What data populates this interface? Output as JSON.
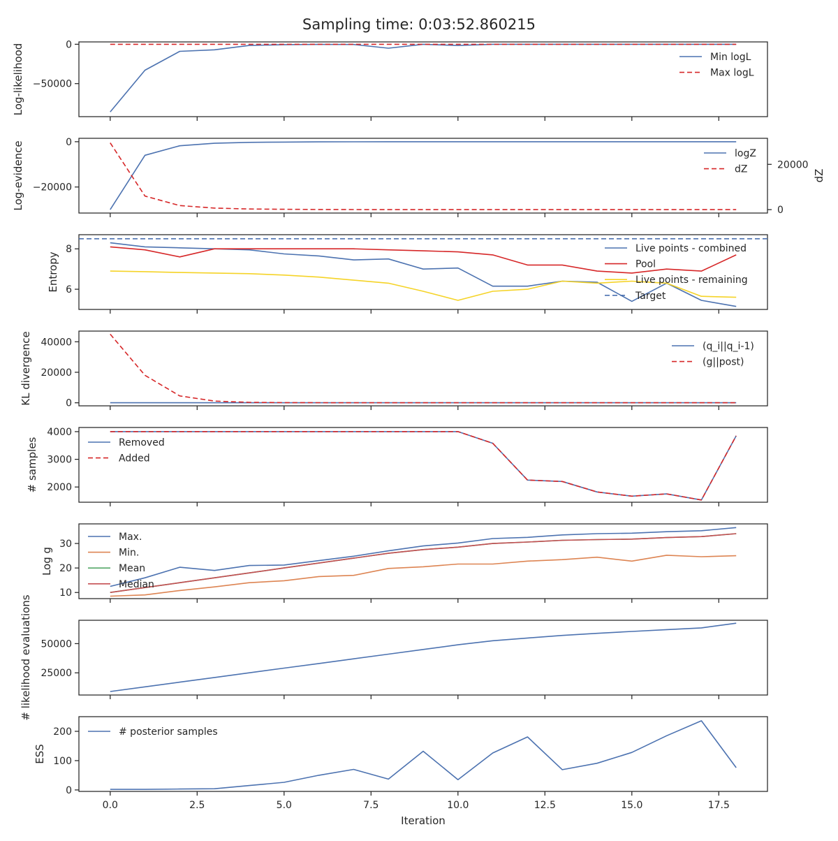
{
  "title": "Sampling time: 0:03:52.860215",
  "colors": {
    "blue": "#4c72b0",
    "red": "#d62728",
    "orange": "#dd8452",
    "green": "#55a868",
    "median": "#c44e52",
    "yellow": "#f5d327",
    "axis": "#262626"
  },
  "chart_data": [
    {
      "type": "line",
      "ylabel": "Log-likelihood",
      "ylim": [
        -92000,
        3000
      ],
      "yticks": [
        0,
        -50000
      ],
      "ytick_labels": [
        "0",
        "−50000"
      ],
      "legend": "upper-right",
      "x": [
        0,
        1,
        2,
        3,
        4,
        5,
        6,
        7,
        8,
        9,
        10,
        11,
        12,
        13,
        14,
        15,
        16,
        17,
        18
      ],
      "series": [
        {
          "name": "Min logL",
          "color": "#4c72b0",
          "dash": "solid",
          "values": [
            -86000,
            -33000,
            -9000,
            -7000,
            -1500,
            -500,
            -200,
            -300,
            -5000,
            0,
            -1500,
            0,
            0,
            0,
            0,
            0,
            0,
            0,
            0
          ]
        },
        {
          "name": "Max logL",
          "color": "#d62728",
          "dash": "dashed",
          "values": [
            0,
            0,
            0,
            0,
            0,
            0,
            0,
            0,
            0,
            0,
            0,
            0,
            0,
            0,
            0,
            0,
            0,
            0,
            0
          ]
        }
      ]
    },
    {
      "type": "line",
      "ylabel": "Log-evidence",
      "ylim": [
        -31500,
        1500
      ],
      "yticks": [
        0,
        -20000
      ],
      "ytick_labels": [
        "0",
        "−20000"
      ],
      "legend": "upper-right",
      "x": [
        0,
        1,
        2,
        3,
        4,
        5,
        6,
        7,
        8,
        9,
        10,
        11,
        12,
        13,
        14,
        15,
        16,
        17,
        18
      ],
      "series": [
        {
          "name": "logZ",
          "color": "#4c72b0",
          "dash": "solid",
          "values": [
            -30000,
            -6000,
            -1800,
            -700,
            -300,
            -150,
            -80,
            -40,
            -20,
            -10,
            -5,
            -3,
            -2,
            -1,
            0,
            0,
            0,
            0,
            0
          ]
        }
      ],
      "secondary": {
        "ylabel": "dZ",
        "ylim": [
          -1500,
          31500
        ],
        "yticks": [
          20000,
          0
        ],
        "ytick_labels": [
          "20000",
          "0"
        ],
        "series": [
          {
            "name": "dZ",
            "color": "#d62728",
            "dash": "dashed",
            "values": [
              29500,
              6000,
              1800,
              700,
              300,
              150,
              80,
              40,
              20,
              10,
              5,
              3,
              2,
              1,
              0,
              0,
              0,
              0,
              0
            ]
          }
        ]
      }
    },
    {
      "type": "line",
      "ylabel": "Entropy",
      "ylim": [
        5.0,
        8.7
      ],
      "yticks": [
        8,
        6
      ],
      "ytick_labels": [
        "8",
        "6"
      ],
      "legend": "upper-right",
      "x": [
        0,
        1,
        2,
        3,
        4,
        5,
        6,
        7,
        8,
        9,
        10,
        11,
        12,
        13,
        14,
        15,
        16,
        17,
        18
      ],
      "series": [
        {
          "name": "Live points - combined",
          "color": "#4c72b0",
          "dash": "solid",
          "values": [
            8.3,
            8.1,
            8.05,
            8.0,
            7.95,
            7.75,
            7.65,
            7.45,
            7.5,
            7.0,
            7.05,
            6.15,
            6.15,
            6.4,
            6.35,
            5.4,
            6.3,
            5.45,
            5.15
          ]
        },
        {
          "name": "Pool",
          "color": "#d62728",
          "dash": "solid",
          "values": [
            8.1,
            7.95,
            7.6,
            8.0,
            8.0,
            8.0,
            8.0,
            8.0,
            7.95,
            7.9,
            7.85,
            7.7,
            7.2,
            7.2,
            6.9,
            6.8,
            7.0,
            6.9,
            7.7
          ]
        },
        {
          "name": "Live points - remaining",
          "color": "#f5d327",
          "dash": "solid",
          "values": [
            6.9,
            6.87,
            6.83,
            6.8,
            6.77,
            6.7,
            6.6,
            6.45,
            6.3,
            5.9,
            5.45,
            5.9,
            6.0,
            6.4,
            6.3,
            6.4,
            6.3,
            5.65,
            5.6
          ]
        },
        {
          "name": "Target",
          "color": "#4c72b0",
          "dash": "dashed",
          "hline": 8.5
        }
      ]
    },
    {
      "type": "line",
      "ylabel": "KL divergence",
      "ylim": [
        -2000,
        47000
      ],
      "yticks": [
        40000,
        20000,
        0
      ],
      "ytick_labels": [
        "40000",
        "20000",
        "0"
      ],
      "legend": "upper-right",
      "x": [
        0,
        1,
        2,
        3,
        4,
        5,
        6,
        7,
        8,
        9,
        10,
        11,
        12,
        13,
        14,
        15,
        16,
        17,
        18
      ],
      "series": [
        {
          "name": "(q_i||q_i-1)",
          "color": "#4c72b0",
          "dash": "solid",
          "values": [
            0,
            0,
            0,
            0,
            0,
            0,
            0,
            0,
            0,
            0,
            0,
            0,
            0,
            0,
            0,
            0,
            0,
            0,
            0
          ]
        },
        {
          "name": "(g||post)",
          "color": "#d62728",
          "dash": "dashed",
          "values": [
            45000,
            18000,
            4500,
            1100,
            300,
            100,
            50,
            30,
            20,
            10,
            10,
            5,
            5,
            5,
            5,
            5,
            5,
            5,
            5
          ]
        }
      ]
    },
    {
      "type": "line",
      "ylabel": "# samples",
      "ylim": [
        1450,
        4150
      ],
      "yticks": [
        4000,
        3000,
        2000
      ],
      "ytick_labels": [
        "4000",
        "3000",
        "2000"
      ],
      "legend": "upper-left",
      "x": [
        0,
        1,
        2,
        3,
        4,
        5,
        6,
        7,
        8,
        9,
        10,
        11,
        12,
        13,
        14,
        15,
        16,
        17,
        18
      ],
      "series": [
        {
          "name": "Removed",
          "color": "#4c72b0",
          "dash": "solid",
          "values": [
            4000,
            4000,
            4000,
            4000,
            4000,
            4000,
            4000,
            4000,
            4000,
            4000,
            4000,
            3580,
            2250,
            2200,
            1820,
            1670,
            1750,
            1530,
            3850
          ]
        },
        {
          "name": "Added",
          "color": "#d62728",
          "dash": "dashed",
          "values": [
            4000,
            4000,
            4000,
            4000,
            4000,
            4000,
            4000,
            4000,
            4000,
            4000,
            4000,
            3580,
            2250,
            2200,
            1820,
            1670,
            1750,
            1530,
            3850
          ]
        }
      ]
    },
    {
      "type": "line",
      "ylabel": "Log g",
      "ylim": [
        7.5,
        38.0
      ],
      "yticks": [
        30,
        20,
        10
      ],
      "ytick_labels": [
        "30",
        "20",
        "10"
      ],
      "legend": "upper-left",
      "x": [
        0,
        1,
        2,
        3,
        4,
        5,
        6,
        7,
        8,
        9,
        10,
        11,
        12,
        13,
        14,
        15,
        16,
        17,
        18
      ],
      "series": [
        {
          "name": "Max.",
          "color": "#4c72b0",
          "dash": "solid",
          "values": [
            12.5,
            16.0,
            20.3,
            19.0,
            21.0,
            21.2,
            23.0,
            24.8,
            27.0,
            29.0,
            30.2,
            32.0,
            32.5,
            33.5,
            34.0,
            34.2,
            34.8,
            35.2,
            36.5
          ]
        },
        {
          "name": "Min.",
          "color": "#dd8452",
          "dash": "solid",
          "values": [
            8.5,
            9.0,
            10.8,
            12.3,
            14.0,
            14.8,
            16.5,
            17.0,
            19.8,
            20.5,
            21.6,
            21.6,
            22.8,
            23.4,
            24.4,
            22.8,
            25.2,
            24.6,
            25.0
          ]
        },
        {
          "name": "Mean",
          "color": "#55a868",
          "dash": "solid",
          "values": [
            10.0,
            12.0,
            14.0,
            16.0,
            18.0,
            20.0,
            22.0,
            24.0,
            26.0,
            27.5,
            28.5,
            30.0,
            30.6,
            31.3,
            31.6,
            31.8,
            32.4,
            32.8,
            34.0
          ]
        },
        {
          "name": "Median",
          "color": "#c44e52",
          "dash": "solid",
          "values": [
            10.0,
            12.0,
            14.0,
            16.0,
            18.0,
            20.0,
            22.0,
            24.0,
            26.0,
            27.5,
            28.5,
            30.0,
            30.6,
            31.3,
            31.6,
            31.8,
            32.4,
            32.8,
            34.0
          ]
        }
      ]
    },
    {
      "type": "line",
      "ylabel": "# likelihood evaluations",
      "ylim": [
        6000,
        70000
      ],
      "yticks": [
        50000,
        25000
      ],
      "ytick_labels": [
        "50000",
        "25000"
      ],
      "x": [
        0,
        1,
        2,
        3,
        4,
        5,
        6,
        7,
        8,
        9,
        10,
        11,
        12,
        13,
        14,
        15,
        16,
        17,
        18
      ],
      "series": [
        {
          "name": "",
          "color": "#4c72b0",
          "dash": "solid",
          "values": [
            9000,
            13000,
            17000,
            21000,
            25000,
            29000,
            33000,
            37000,
            41000,
            45000,
            49000,
            52500,
            54800,
            57000,
            58800,
            60400,
            62000,
            63500,
            67500
          ]
        }
      ]
    },
    {
      "type": "line",
      "ylabel": "ESS",
      "ylim": [
        -5,
        250
      ],
      "yticks": [
        200,
        100,
        0
      ],
      "ytick_labels": [
        "200",
        "100",
        "0"
      ],
      "xlabel": "Iteration",
      "xticks": [
        0,
        2.5,
        5,
        7.5,
        10,
        12.5,
        15,
        17.5
      ],
      "xtick_labels": [
        "0.0",
        "2.5",
        "5.0",
        "7.5",
        "10.0",
        "12.5",
        "15.0",
        "17.5"
      ],
      "legend": "upper-left",
      "x": [
        0,
        1,
        2,
        3,
        4,
        5,
        6,
        7,
        8,
        9,
        10,
        11,
        12,
        13,
        14,
        15,
        16,
        17,
        18
      ],
      "series": [
        {
          "name": "# posterior samples",
          "color": "#4c72b0",
          "dash": "solid",
          "values": [
            2,
            2,
            3,
            4,
            15,
            26,
            50,
            70,
            37,
            132,
            35,
            126,
            181,
            69,
            91,
            128,
            185,
            236,
            76
          ]
        }
      ]
    }
  ]
}
